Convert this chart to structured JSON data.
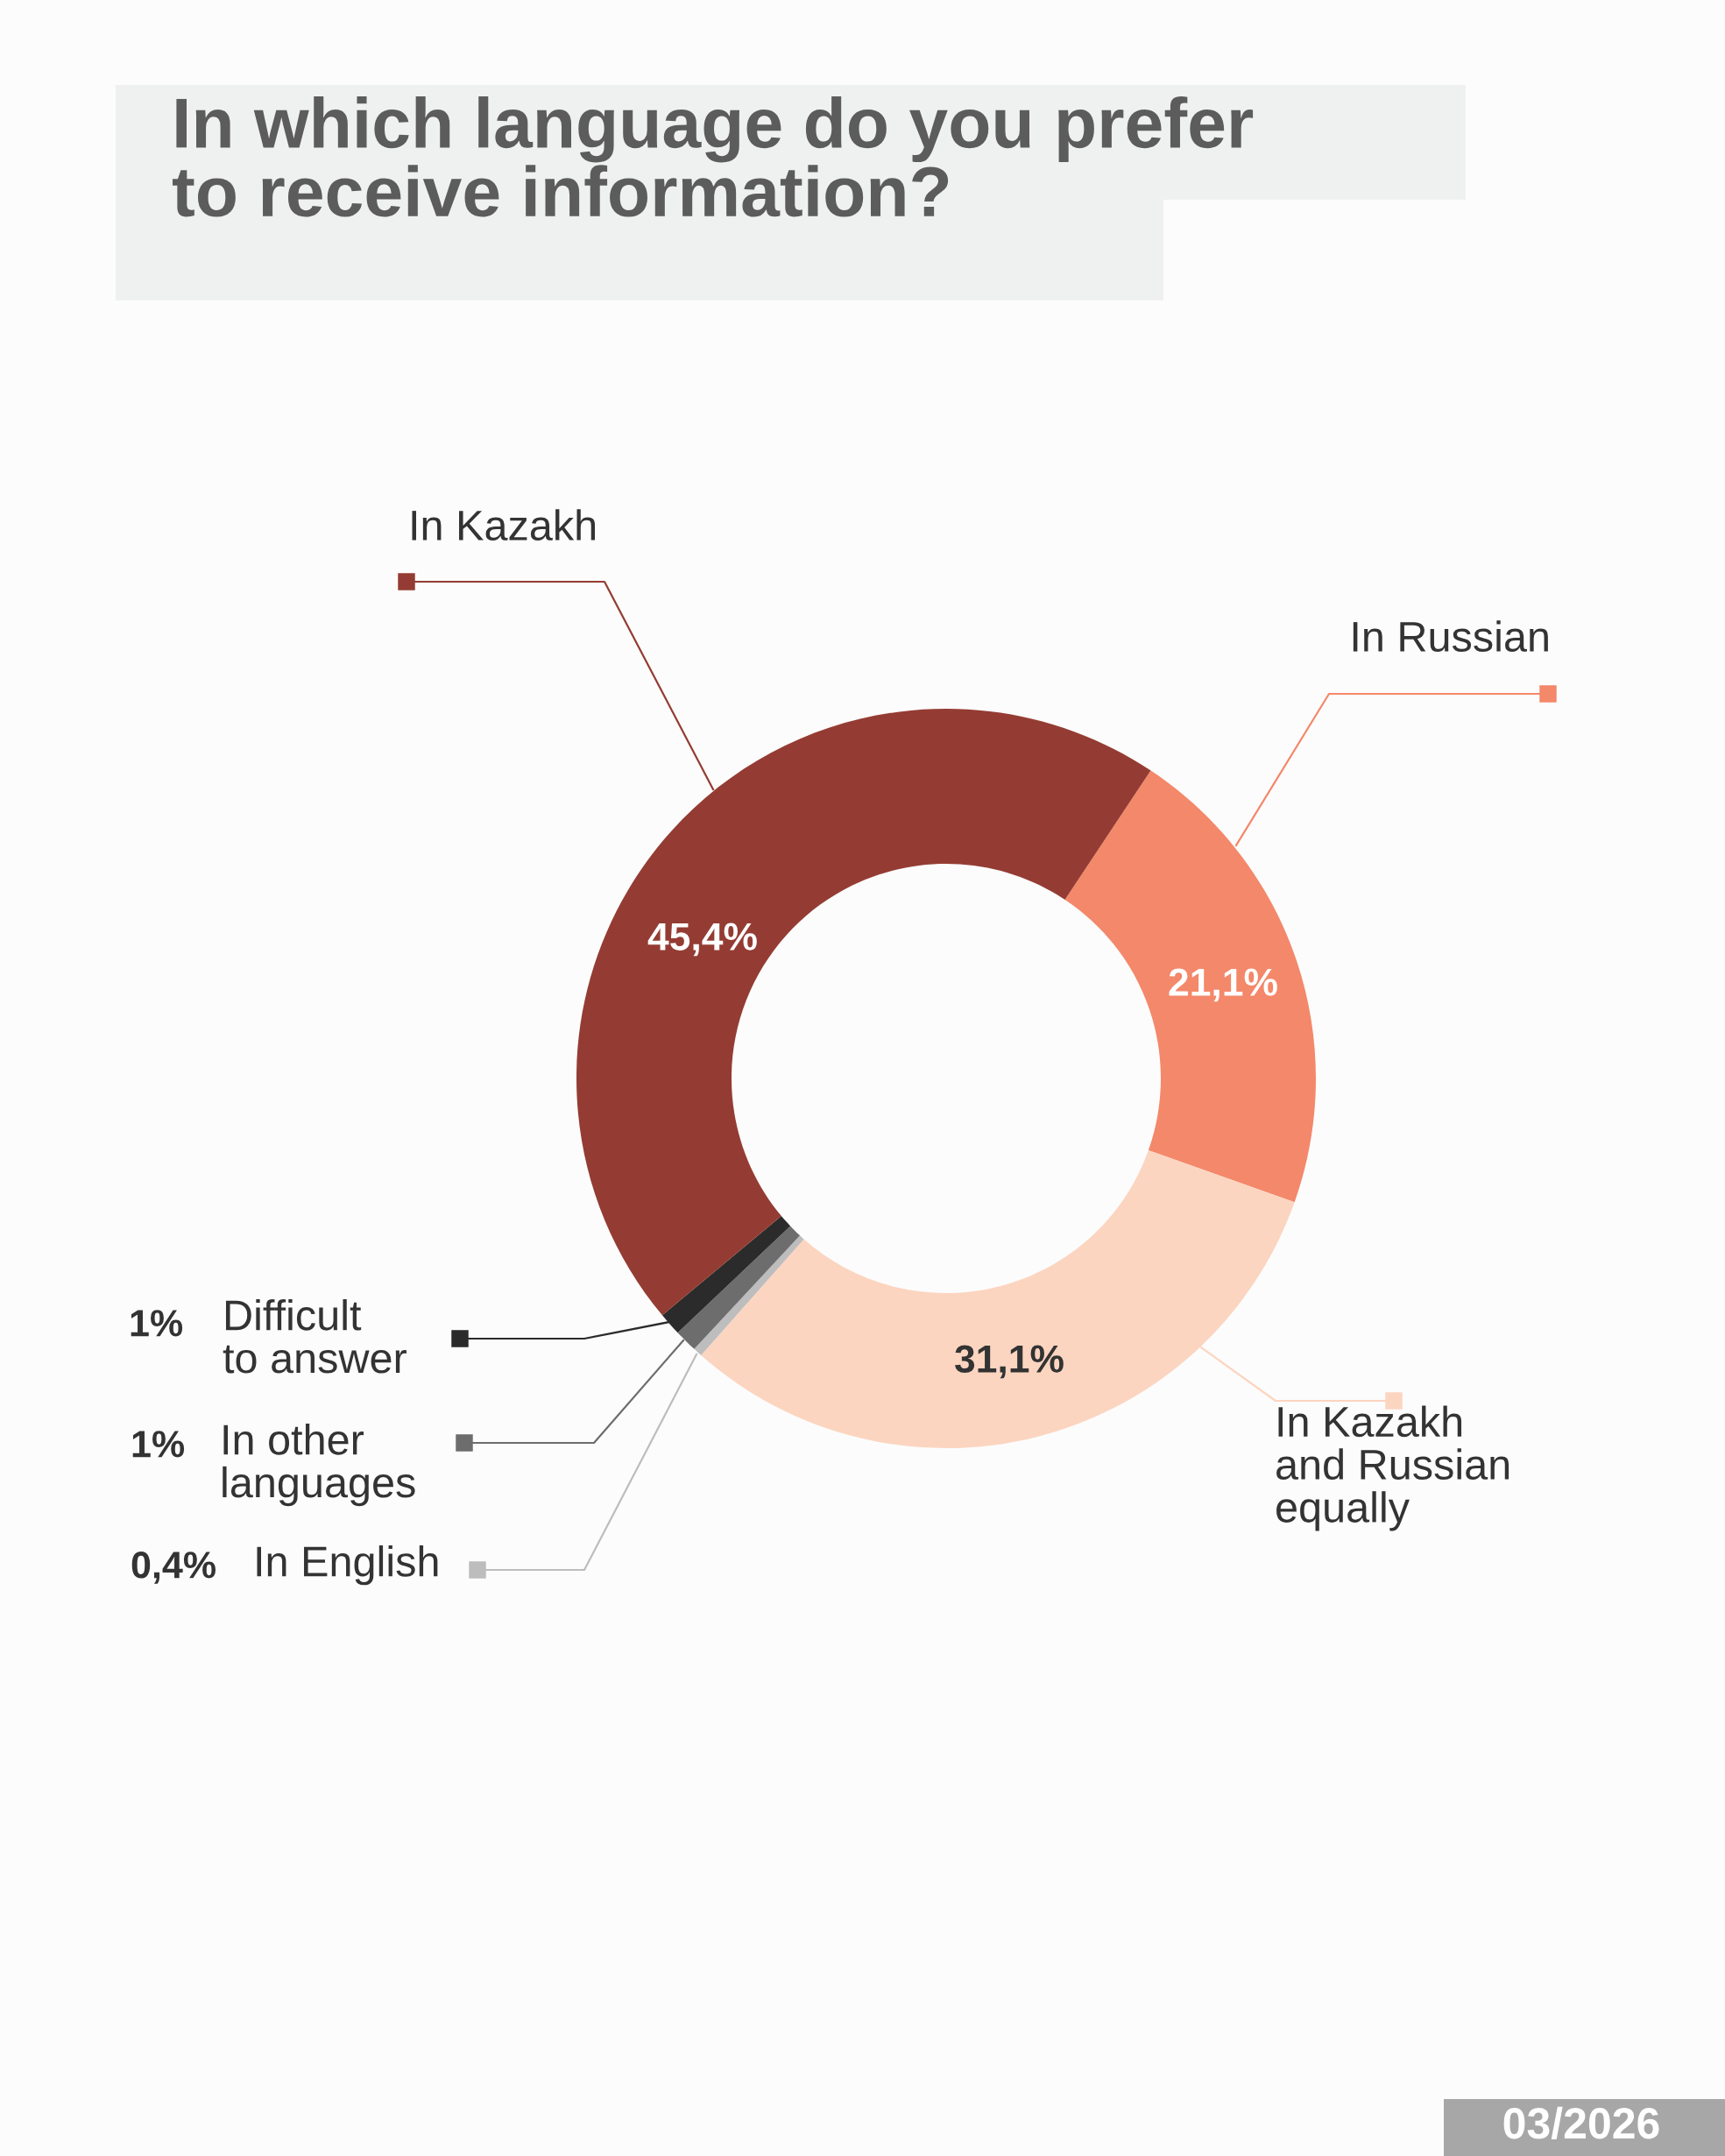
{
  "chart_data": {
    "type": "donut",
    "title": "In which language do you prefer\nto receive information?",
    "categories": [
      "In Russian",
      "In Kazakh\nand Russian\nequally",
      "In English",
      "In other\nlanguages",
      "Difficult\nto answer",
      "In Kazakh"
    ],
    "values": [
      21.1,
      31.1,
      0.4,
      1,
      1,
      45.4
    ],
    "colors": [
      "#f4886a",
      "#fcd5c0",
      "#bdbdbd",
      "#6d6d6d",
      "#2b2b2b",
      "#943c33"
    ],
    "value_labels": [
      "21,1%",
      "31,1%",
      "0,4%",
      "1%",
      "1%",
      "45,4%"
    ],
    "annotations": [
      "03/2026"
    ],
    "legend": "bottom left"
  }
}
